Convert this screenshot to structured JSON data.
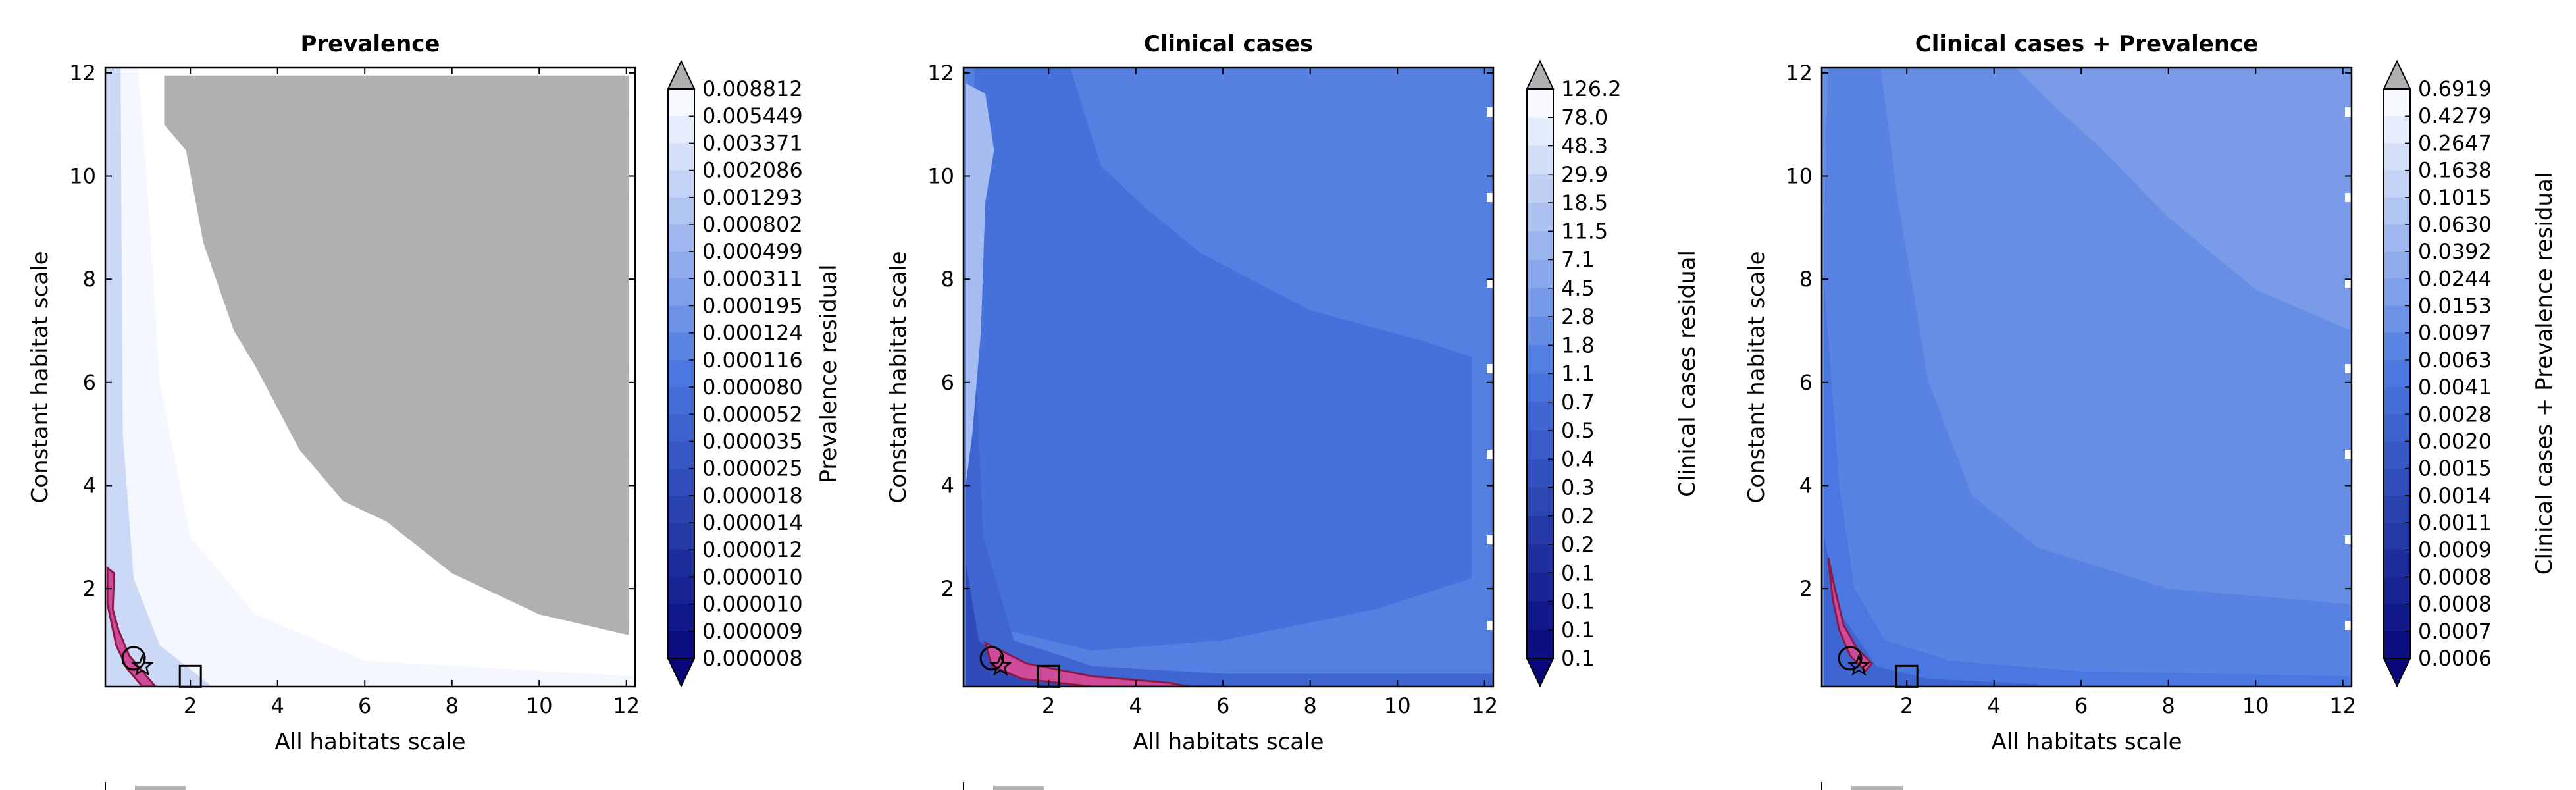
{
  "chart_data": [
    {
      "type": "heatmap",
      "title": "Prevalence",
      "xlabel": "All habitats scale",
      "ylabel": "Constant habitat scale",
      "xlim": [
        0.05,
        12.2
      ],
      "ylim": [
        0.1,
        12.1
      ],
      "x_ticks": [
        "2",
        "4",
        "6",
        "8",
        "10",
        "12"
      ],
      "y_ticks": [
        "2",
        "4",
        "6",
        "8",
        "10",
        "12"
      ],
      "colorbar_label": "Prevalence residual",
      "colorbar_levels": [
        "0.008812",
        "0.005449",
        "0.003371",
        "0.002086",
        "0.001293",
        "0.000802",
        "0.000499",
        "0.000311",
        "0.000195",
        "0.000124",
        "0.000116",
        "0.000080",
        "0.000052",
        "0.000035",
        "0.000025",
        "0.000018",
        "0.000014",
        "0.000012",
        "0.000010",
        "0.000010",
        "0.000009",
        "0.000008"
      ],
      "colorbar_extend": "both",
      "no_data_color": "#b0b0b0",
      "markers": [
        {
          "shape": "circle",
          "x": 0.7,
          "y": 0.65
        },
        {
          "shape": "star",
          "x": 0.9,
          "y": 0.5
        },
        {
          "shape": "square",
          "x": 2.0,
          "y": 0.3
        }
      ]
    },
    {
      "type": "heatmap",
      "title": "Clinical cases",
      "xlabel": "All habitats scale",
      "ylabel": "Constant habitat scale",
      "xlim": [
        0.05,
        12.2
      ],
      "ylim": [
        0.1,
        12.1
      ],
      "x_ticks": [
        "2",
        "4",
        "6",
        "8",
        "10",
        "12"
      ],
      "y_ticks": [
        "2",
        "4",
        "6",
        "8",
        "10",
        "12"
      ],
      "colorbar_label": "Clinical cases residual",
      "colorbar_levels": [
        "126.2",
        "78.0",
        "48.3",
        "29.9",
        "18.5",
        "11.5",
        "7.1",
        "4.5",
        "2.8",
        "1.8",
        "1.1",
        "0.7",
        "0.5",
        "0.4",
        "0.3",
        "0.2",
        "0.2",
        "0.1",
        "0.1",
        "0.1",
        "0.1"
      ],
      "colorbar_extend": "both",
      "markers": [
        {
          "shape": "circle",
          "x": 0.7,
          "y": 0.65
        },
        {
          "shape": "star",
          "x": 0.9,
          "y": 0.5
        },
        {
          "shape": "square",
          "x": 2.0,
          "y": 0.3
        }
      ]
    },
    {
      "type": "heatmap",
      "title": "Clinical cases + Prevalence",
      "xlabel": "All habitats scale",
      "ylabel": "Constant habitat scale",
      "xlim": [
        0.05,
        12.2
      ],
      "ylim": [
        0.1,
        12.1
      ],
      "x_ticks": [
        "2",
        "4",
        "6",
        "8",
        "10",
        "12"
      ],
      "y_ticks": [
        "2",
        "4",
        "6",
        "8",
        "10",
        "12"
      ],
      "colorbar_label": "Clinical cases + Prevalence residual",
      "colorbar_levels": [
        "0.6919",
        "0.4279",
        "0.2647",
        "0.1638",
        "0.1015",
        "0.0630",
        "0.0392",
        "0.0244",
        "0.0153",
        "0.0097",
        "0.0063",
        "0.0041",
        "0.0028",
        "0.0020",
        "0.0015",
        "0.0014",
        "0.0011",
        "0.0009",
        "0.0008",
        "0.0008",
        "0.0007",
        "0.0006"
      ],
      "colorbar_extend": "both",
      "markers": [
        {
          "shape": "circle",
          "x": 0.7,
          "y": 0.65
        },
        {
          "shape": "star",
          "x": 0.9,
          "y": 0.5
        },
        {
          "shape": "square",
          "x": 2.0,
          "y": 0.3
        }
      ]
    }
  ],
  "colors": {
    "palette_dark": "#08087a",
    "palette_mid": "#4a78e0",
    "palette_light": "#ffffff",
    "contour_outline": "#8b1a4a",
    "contour_fill": "#d04a9a",
    "no_data": "#b0b0b0"
  }
}
